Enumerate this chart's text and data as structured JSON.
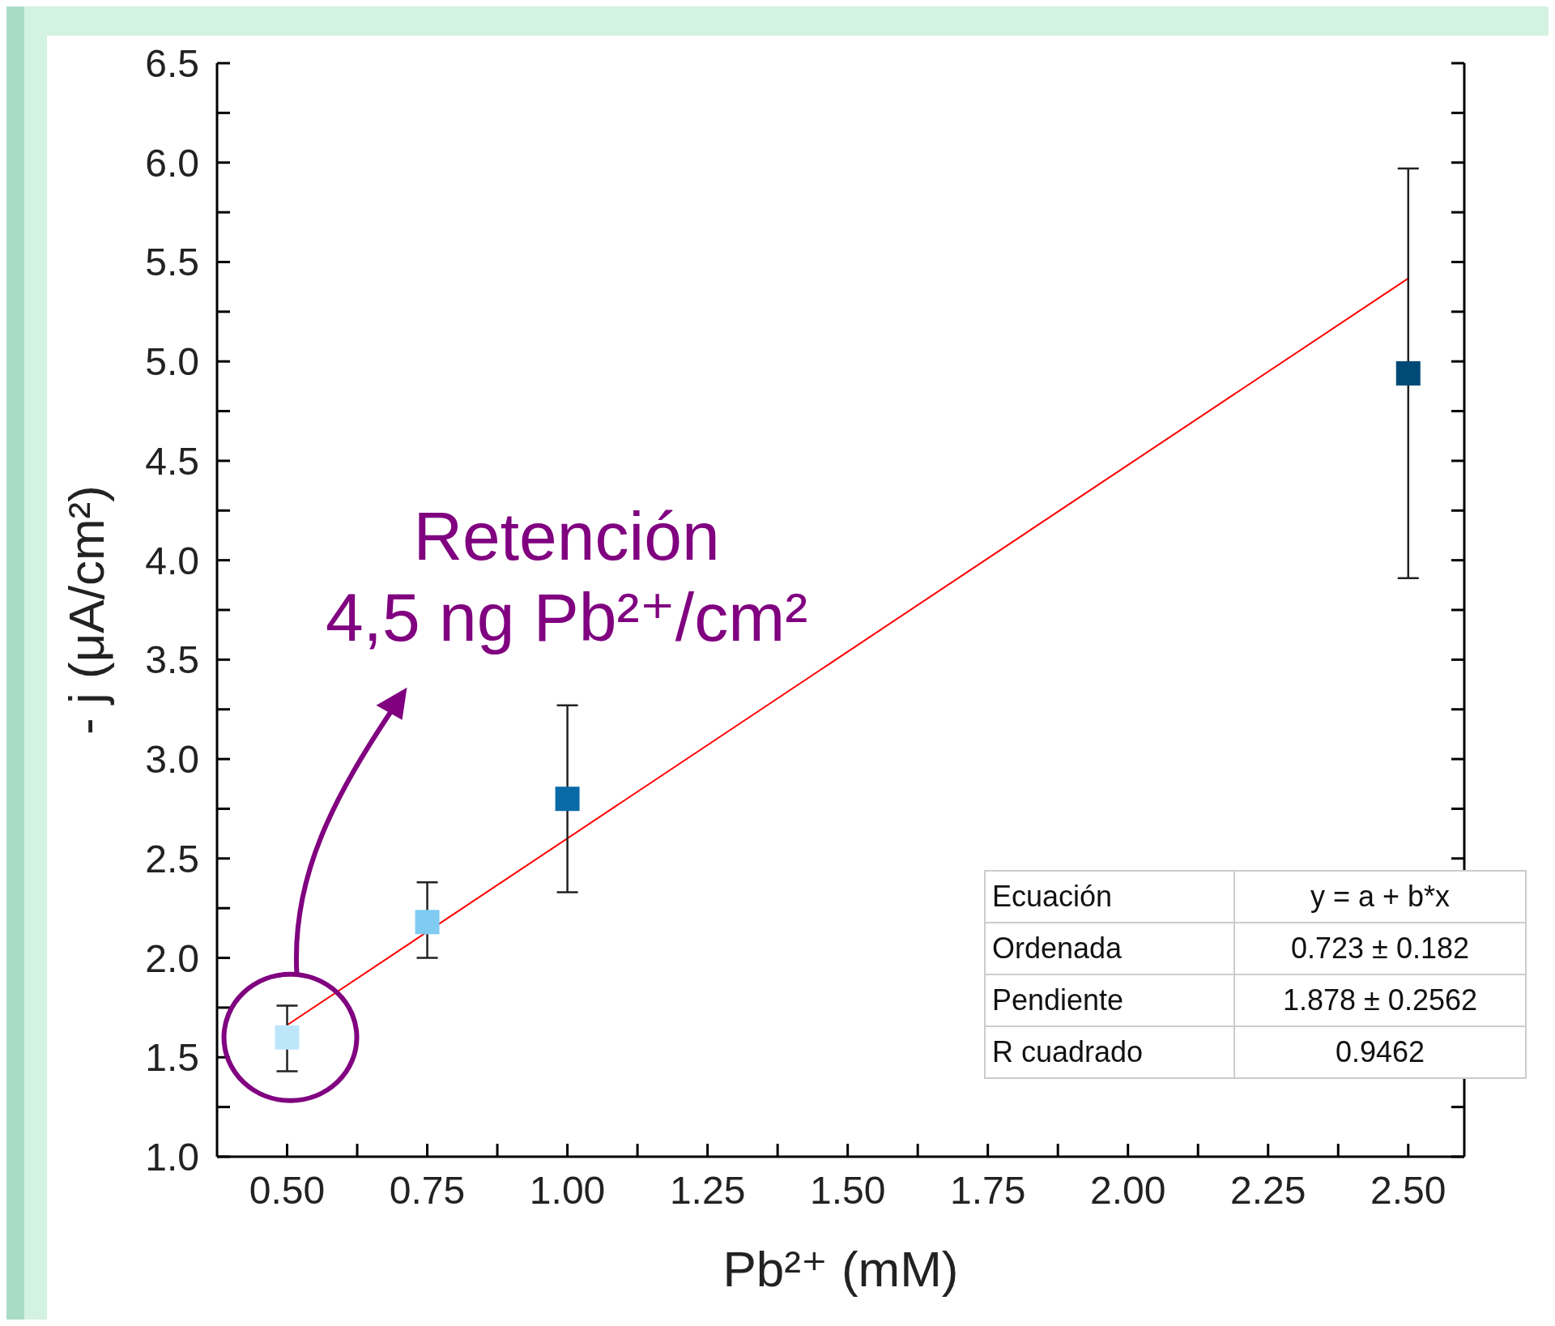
{
  "chart_data": {
    "type": "scatter",
    "xlabel": "Pb²⁺ (mM)",
    "ylabel": "- j (μA/cm²)",
    "x": [
      0.5,
      0.75,
      1.0,
      2.5
    ],
    "series": [
      {
        "colors": [
          "#bde6fb",
          "#80cbf2",
          "#0a6aa8",
          "#004a75"
        ],
        "values": [
          1.6,
          2.18,
          2.8,
          4.94
        ],
        "errors": [
          [
            1.43,
            1.76
          ],
          [
            2.0,
            2.38
          ],
          [
            2.33,
            3.27
          ],
          [
            3.91,
            5.97
          ]
        ],
        "marker": "square"
      },
      {
        "type": "line",
        "color": "#ff0000",
        "x": [
          0.5,
          2.5
        ],
        "values": [
          1.662,
          5.418
        ],
        "marker": "none"
      }
    ],
    "xlim": [
      0.375,
      2.6
    ],
    "xticks": [
      "0.50",
      {
        "value": 0.625,
        "label": null
      },
      0.75,
      {
        "value": 0.875,
        "label": null
      },
      "1.00",
      {
        "value": 1.125,
        "label": null
      },
      1.25,
      {
        "value": 1.375,
        "label": null
      },
      "1.50",
      {
        "value": 1.625,
        "label": null
      },
      1.75,
      {
        "value": 1.875,
        "label": null
      },
      "2.00",
      {
        "value": 2.125,
        "label": null
      },
      2.25,
      {
        "value": 2.375,
        "label": null
      },
      "2.50"
    ],
    "ylim": [
      1,
      6.5
    ],
    "yticks": [
      "1.0",
      {
        "value": 1.25,
        "label": null
      },
      1.5,
      {
        "value": 1.75,
        "label": null
      },
      "2.0",
      {
        "value": 2.25,
        "label": null
      },
      2.5,
      {
        "value": 2.75,
        "label": null
      },
      "3.0",
      {
        "value": 3.25,
        "label": null
      },
      3.5,
      {
        "value": 3.75,
        "label": null
      },
      "4.0",
      {
        "value": 4.25,
        "label": null
      },
      4.5,
      {
        "value": 4.75,
        "label": null
      },
      "5.0",
      {
        "value": 5.25,
        "label": null
      },
      5.5,
      {
        "value": 5.75,
        "label": null
      },
      "6.0",
      {
        "value": 6.25,
        "label": null
      },
      6.5
    ],
    "grid": false,
    "legend": false,
    "annotations": [
      "Retención\n4,5 ng Pb²⁺/cm²",
      "Ecuación",
      "y = a + b*x",
      "Ordenada",
      "0.723 ± 0.182",
      "Pendiente",
      "1.878 ± 0.2562",
      "R cuadrado",
      "0.9462"
    ]
  }
}
